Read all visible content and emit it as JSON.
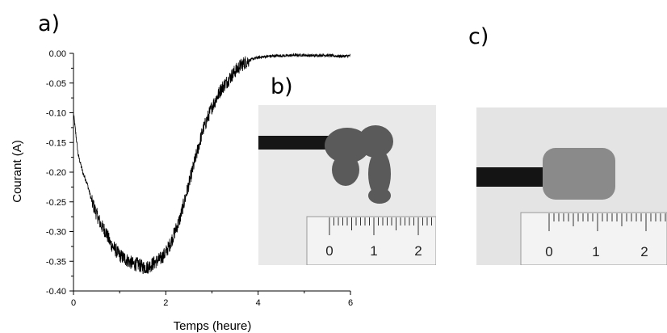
{
  "panels": {
    "a_label": "a)",
    "b_label": "b)",
    "c_label": "c)"
  },
  "chart_data": {
    "type": "line",
    "xlabel": "Temps (heure)",
    "ylabel": "Courant (A)",
    "xlim": [
      0,
      6
    ],
    "ylim": [
      -0.4,
      0.0
    ],
    "xticks": [
      "0",
      "2",
      "4",
      "6"
    ],
    "yticks": [
      "0.00",
      "-0.05",
      "-0.10",
      "-0.15",
      "-0.20",
      "-0.25",
      "-0.30",
      "-0.35",
      "-0.40"
    ],
    "grid": false,
    "series": [
      {
        "line_color": "#000000",
        "x": [
          0.0,
          0.1,
          0.2,
          0.3,
          0.4,
          0.5,
          0.6,
          0.7,
          0.8,
          0.9,
          1.0,
          1.1,
          1.2,
          1.3,
          1.4,
          1.5,
          1.6,
          1.7,
          1.8,
          1.9,
          2.0,
          2.1,
          2.2,
          2.3,
          2.4,
          2.5,
          2.6,
          2.7,
          2.8,
          2.9,
          3.0,
          3.1,
          3.2,
          3.3,
          3.4,
          3.5,
          3.6,
          3.7,
          3.8,
          3.9,
          4.0,
          4.2,
          4.4,
          4.6,
          4.8,
          5.0,
          5.2,
          5.4,
          5.6,
          5.8,
          6.0
        ],
        "y": [
          -0.1,
          -0.17,
          -0.2,
          -0.22,
          -0.25,
          -0.27,
          -0.29,
          -0.3,
          -0.32,
          -0.33,
          -0.34,
          -0.345,
          -0.35,
          -0.355,
          -0.355,
          -0.36,
          -0.36,
          -0.355,
          -0.35,
          -0.345,
          -0.335,
          -0.32,
          -0.3,
          -0.28,
          -0.25,
          -0.22,
          -0.19,
          -0.16,
          -0.13,
          -0.11,
          -0.09,
          -0.075,
          -0.06,
          -0.05,
          -0.04,
          -0.03,
          -0.022,
          -0.016,
          -0.012,
          -0.009,
          -0.007,
          -0.005,
          -0.004,
          -0.004,
          -0.003,
          -0.003,
          -0.004,
          -0.003,
          -0.004,
          -0.005,
          -0.004
        ]
      }
    ]
  },
  "photo_b": {
    "background": "#e9e9e9",
    "rod_color": "#161616",
    "deposit_color": "#5a5a5a",
    "ruler_numbers": [
      "0",
      "1",
      "2"
    ]
  },
  "photo_c": {
    "background": "#e4e4e4",
    "rod_color": "#141414",
    "deposit_color": "#8a8a8a",
    "ruler_numbers": [
      "0",
      "1",
      "2"
    ]
  }
}
